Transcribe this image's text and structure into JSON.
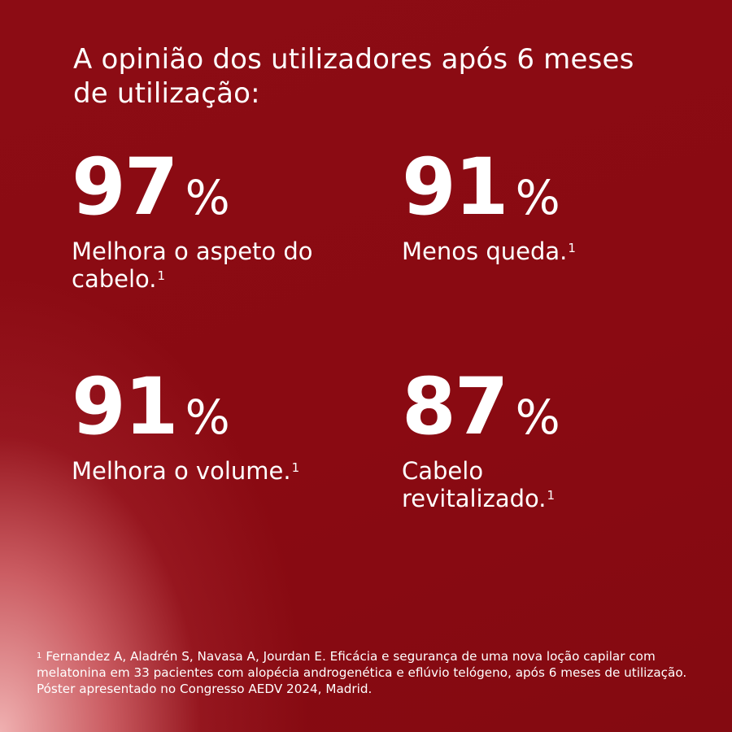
{
  "headline": "A opinião dos utilizadores após 6 meses de utilização:",
  "stats": [
    {
      "value": "97",
      "unit": "%",
      "label": "Melhora o aspeto do cabelo.",
      "ref": "1"
    },
    {
      "value": "91",
      "unit": "%",
      "label": "Menos queda.",
      "ref": "1"
    },
    {
      "value": "91",
      "unit": "%",
      "label": "Melhora o volume.",
      "ref": "1"
    },
    {
      "value": "87",
      "unit": "%",
      "label": "Cabelo revitalizado.",
      "ref": "1"
    }
  ],
  "footnote": {
    "ref": "1",
    "text": "Fernandez A, Aladrén S, Navasa A, Jourdan E. Eficácia e segurança de uma nova loção capilar com melatonina em 33 pacientes com alopécia androgenética e eflúvio telógeno, após 6 meses de utilização. Póster apresentado no Congresso AEDV 2024, Madrid."
  },
  "colors": {
    "background": "#8a0a12",
    "glow": "#f5b9b9",
    "text": "#ffffff"
  }
}
